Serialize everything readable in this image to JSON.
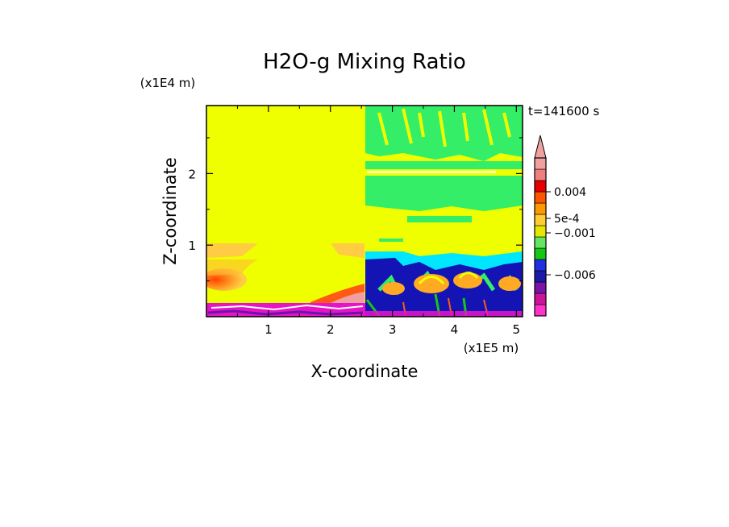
{
  "chart_data": {
    "type": "heatmap",
    "title": "H2O-g Mixing Ratio",
    "xlabel": "X-coordinate",
    "ylabel": "Z-coordinate",
    "x_multiplier": "(x1E5 m)",
    "y_multiplier": "(x1E4 m)",
    "time_label": "t=141600 s",
    "xlim": [
      0,
      5.1
    ],
    "ylim": [
      0,
      2.95
    ],
    "x_ticks": [
      1,
      2,
      3,
      4,
      5
    ],
    "y_ticks": [
      1,
      2
    ],
    "x_tick_labels": [
      "1",
      "2",
      "3",
      "4",
      "5"
    ],
    "y_tick_labels": [
      "1",
      "2"
    ],
    "colorbar": {
      "levels": [
        {
          "color": "#ff33cc"
        },
        {
          "color": "#cc1499"
        },
        {
          "color": "#7a14a8"
        },
        {
          "color": "#1a1aa8"
        },
        {
          "color": "#2030e0"
        },
        {
          "color": "#14c814"
        },
        {
          "color": "#64e664"
        },
        {
          "color": "#e6e600"
        },
        {
          "color": "#ffcc33"
        },
        {
          "color": "#ff9900"
        },
        {
          "color": "#ff5500"
        },
        {
          "color": "#e60000"
        },
        {
          "color": "#f08080"
        },
        {
          "color": "#f0a0a0"
        }
      ],
      "labels": [
        "0.004",
        "5e-4",
        "−0.001",
        "−0.006"
      ],
      "label_values": [
        0.004,
        0.0005,
        -0.001,
        -0.006
      ]
    },
    "colors": {
      "yellow": "#f0ff00",
      "light_green": "#33ee66",
      "cyan": "#00e6ff",
      "blue": "#1414b4",
      "orange": "#ffaa22",
      "red_orange": "#ff5a14",
      "pink": "#ff88aa",
      "magenta": "#e614c8",
      "purple": "#6a14a8"
    }
  }
}
